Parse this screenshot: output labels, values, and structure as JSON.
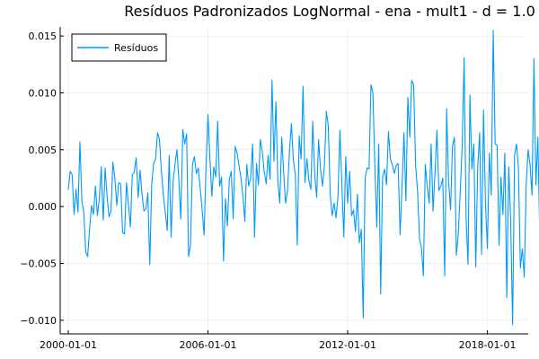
{
  "chart_data": {
    "type": "line",
    "title": "Resíduos Padronizados LogNormal - ena - mult1 - d = 1.0",
    "xlabel": "",
    "ylabel": "",
    "x_tick_labels": [
      "2000-01-01",
      "2006-01-01",
      "2012-01-01",
      "2018-01-01"
    ],
    "x_tick_positions": [
      0,
      72,
      144,
      216
    ],
    "y_ticks": [
      -0.01,
      -0.005,
      0.0,
      0.005,
      0.01,
      0.015
    ],
    "y_tick_labels": [
      "−0.010",
      "−0.005",
      "0.000",
      "0.005",
      "0.010",
      "0.015"
    ],
    "ylim": [
      -0.0112,
      0.0158
    ],
    "x_unit": "months since 2000-01",
    "grid": true,
    "legend_position": "top-left",
    "series": [
      {
        "name": "Resíduos",
        "color": "#009af9",
        "values": [
          0.0015,
          0.0031,
          0.0028,
          -0.0007,
          0.0015,
          -0.0005,
          0.0057,
          0.0005,
          -0.0005,
          -0.004,
          -0.0044,
          -0.0019,
          0.0001,
          -0.0007,
          0.0018,
          -0.0008,
          0.0007,
          0.0035,
          -0.0012,
          0.0034,
          0.0009,
          -0.0009,
          -0.0004,
          0.0039,
          0.0025,
          0.0001,
          0.0021,
          0.002,
          -0.0023,
          -0.0024,
          0.0021,
          0.0002,
          -0.0018,
          0.0028,
          0.003,
          0.0043,
          0.0008,
          0.0032,
          0.0011,
          -0.0004,
          -0.0002,
          0.0012,
          -0.0051,
          0.002,
          0.0038,
          0.0042,
          0.0065,
          0.0059,
          0.0031,
          0.001,
          -0.0005,
          -0.0021,
          0.0045,
          -0.0027,
          0.0022,
          0.0037,
          0.005,
          0.0023,
          -0.0011,
          0.0068,
          0.0055,
          0.0064,
          -0.0044,
          -0.0034,
          0.0037,
          0.0044,
          0.0029,
          0.0034,
          0.0016,
          -0.0003,
          -0.0025,
          0.0035,
          0.0081,
          0.0042,
          0.0009,
          0.0035,
          0.0026,
          0.0075,
          0.0018,
          0.0026,
          -0.0048,
          0.0007,
          -0.0017,
          0.0024,
          0.0031,
          -0.0011,
          0.0053,
          0.0047,
          0.0036,
          0.0025,
          0.0009,
          -0.0013,
          0.0037,
          0.0018,
          0.0025,
          0.0055,
          -0.0027,
          0.0038,
          0.0019,
          0.0059,
          0.0048,
          0.003,
          0.002,
          0.0045,
          0.0024,
          0.0111,
          0.004,
          0.0092,
          0.0022,
          0.0003,
          0.0061,
          0.003,
          0.0003,
          0.0014,
          0.0049,
          0.0073,
          0.0041,
          0.0028,
          -0.0034,
          0.0062,
          0.0042,
          0.0106,
          0.0021,
          0.0042,
          0.0023,
          0.0015,
          0.0075,
          0.0028,
          0.0008,
          0.0059,
          0.0033,
          0.0018,
          0.0036,
          0.0084,
          0.0071,
          0.0011,
          -0.0008,
          0.0003,
          -0.001,
          0.0009,
          0.0067,
          0.0019,
          -0.0027,
          0.0044,
          0.0003,
          0.0031,
          -0.0008,
          -0.0003,
          -0.0022,
          0.0011,
          -0.0032,
          -0.002,
          -0.0098,
          0.0025,
          0.0034,
          0.0033,
          0.0107,
          0.01,
          0.0036,
          -0.0018,
          0.0055,
          -0.0077,
          0.0026,
          0.0033,
          0.0019,
          0.0066,
          0.0042,
          0.0037,
          0.0029,
          0.0036,
          0.0038,
          -0.0025,
          0.0017,
          0.0065,
          0.0005,
          0.0096,
          0.0061,
          0.0111,
          0.0107,
          0.0036,
          0.0014,
          -0.0028,
          -0.0036,
          -0.0061,
          0.0037,
          0.0018,
          0.0003,
          0.0055,
          -0.0004,
          0.003,
          0.0067,
          0.0014,
          0.0018,
          0.0025,
          -0.0061,
          0.0086,
          0.0022,
          -0.0003,
          0.0053,
          0.0061,
          -0.0043,
          -0.0024,
          0.0013,
          0.0053,
          0.0131,
          -0.0009,
          -0.0051,
          0.0098,
          0.0033,
          0.0055,
          -0.0053,
          0.0034,
          0.0065,
          -0.0042,
          0.0085,
          0.0003,
          -0.0037,
          0.0047,
          0.001,
          0.0155,
          0.0055,
          0.0054,
          -0.0034,
          0.0026,
          -0.0007,
          0.0047,
          -0.008,
          0.0035,
          -0.0013,
          -0.0104,
          0.0045,
          0.0055,
          0.0034,
          -0.0054,
          -0.0037,
          -0.0062,
          0.002,
          0.005,
          0.0036,
          0.001,
          0.013,
          0.0019,
          0.0061,
          -0.0027,
          0.0054,
          -0.0052
        ]
      }
    ]
  }
}
